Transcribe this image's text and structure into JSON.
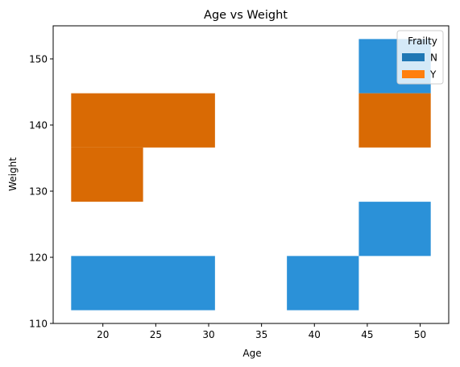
{
  "chart_data": {
    "type": "heatmap",
    "title": "Age vs Weight",
    "xlabel": "Age",
    "ylabel": "Weight",
    "xlim": [
      15.3,
      52.7
    ],
    "ylim": [
      110,
      155
    ],
    "xticks": [
      20,
      25,
      30,
      35,
      40,
      45,
      50
    ],
    "yticks": [
      110,
      120,
      130,
      140,
      150
    ],
    "grid": false,
    "legend": {
      "title": "Frailty",
      "placement": "top-right",
      "entries": [
        {
          "label": "N",
          "color": "#1f77b4"
        },
        {
          "label": "Y",
          "color": "#ff7f0e"
        }
      ]
    },
    "series": [
      {
        "name": "N",
        "color": "#1f77b4",
        "fill_color": "#2b91d8",
        "cells": [
          {
            "x0": 17,
            "x1": 30.6,
            "y0": 112,
            "y1": 120.2
          },
          {
            "x0": 37.4,
            "x1": 44.2,
            "y0": 112,
            "y1": 120.2
          },
          {
            "x0": 44.2,
            "x1": 51,
            "y0": 120.2,
            "y1": 128.4
          },
          {
            "x0": 44.2,
            "x1": 51,
            "y0": 144.8,
            "y1": 153
          }
        ]
      },
      {
        "name": "Y",
        "color": "#ff7f0e",
        "fill_color": "#d96a04",
        "cells": [
          {
            "x0": 17,
            "x1": 30.6,
            "y0": 136.6,
            "y1": 144.8
          },
          {
            "x0": 17,
            "x1": 23.8,
            "y0": 128.4,
            "y1": 136.6
          },
          {
            "x0": 44.2,
            "x1": 51,
            "y0": 136.6,
            "y1": 144.8
          }
        ]
      }
    ]
  }
}
